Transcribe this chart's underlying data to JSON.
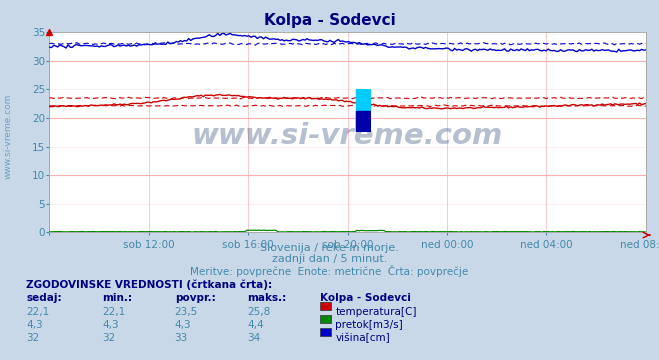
{
  "title": "Kolpa - Sodevci",
  "title_color": "#000080",
  "bg_color": "#c8d8e8",
  "plot_bg_color": "#ffffff",
  "grid_color_major": "#ffb0b0",
  "grid_color_minor": "#ffe8e8",
  "x_labels": [
    "sob 12:00",
    "sob 16:00",
    "sob 20:00",
    "ned 00:00",
    "ned 04:00",
    "ned 08:00"
  ],
  "y_min": 0,
  "y_max": 35,
  "y_ticks": [
    0,
    5,
    10,
    15,
    20,
    25,
    30,
    35
  ],
  "subtitle1": "Slovenija / reke in morje.",
  "subtitle2": "zadnji dan / 5 minut.",
  "subtitle3": "Meritve: povprečne  Enote: metrične  Črta: povprečje",
  "subtitle_color": "#4488aa",
  "watermark": "www.si-vreme.com",
  "watermark_color": "#1a3a6a",
  "left_watermark": "www.si-vreme.com",
  "table_header": "ZGODOVINSKE VREDNOSTI (črtkana črta):",
  "col_headers": [
    "sedaj:",
    "min.:",
    "povpr.:",
    "maks.:"
  ],
  "col_header_color": "#000080",
  "legend_title": "Kolpa - Sodevci",
  "rows": [
    {
      "sedaj": "22,1",
      "min": "22,1",
      "povpr": "23,5",
      "maks": "25,8",
      "label": "temperatura[C]",
      "color": "#cc0000"
    },
    {
      "sedaj": "4,3",
      "min": "4,3",
      "povpr": "4,3",
      "maks": "4,4",
      "label": "pretok[m3/s]",
      "color": "#008800"
    },
    {
      "sedaj": "32",
      "min": "32",
      "povpr": "33",
      "maks": "34",
      "label": "višina[cm]",
      "color": "#0000cc"
    }
  ],
  "temp_color": "#cc0000",
  "flow_color": "#008800",
  "height_color": "#0000cc",
  "axis_label_color": "#4488aa",
  "n_points": 288
}
